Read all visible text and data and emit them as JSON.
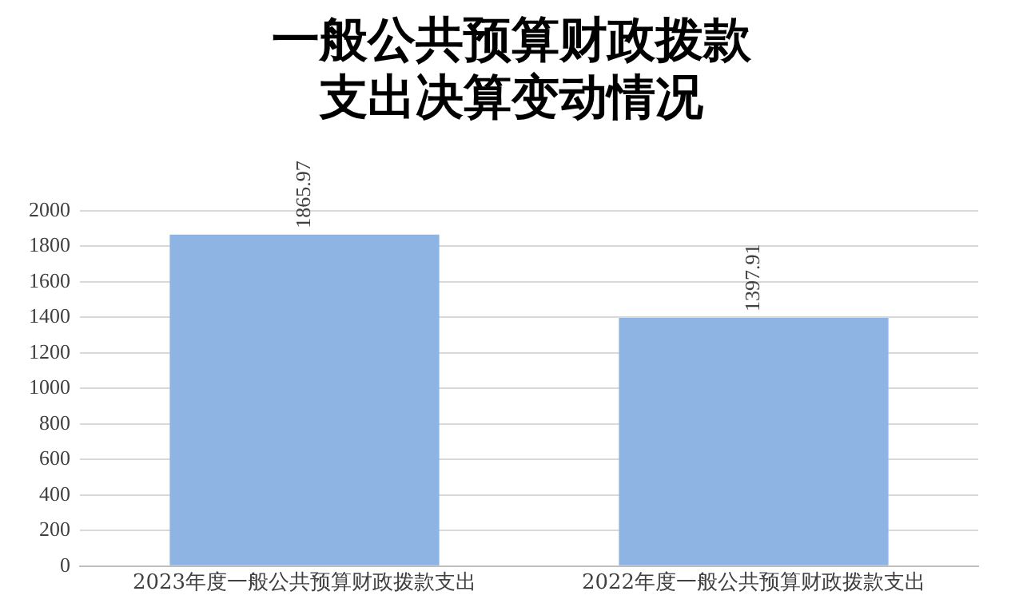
{
  "chart_data": {
    "type": "bar",
    "title": "一般公共预算财政拨款支出决算变动情况",
    "categories": [
      "2023年度一般公共预算财政拨款支出",
      "2022年度一般公共预算财政拨款支出"
    ],
    "values": [
      1865.97,
      1397.91
    ],
    "color": "#8db4e2",
    "ylim": [
      0,
      2000
    ],
    "yticks": [
      0,
      200,
      400,
      600,
      800,
      1000,
      1200,
      1400,
      1600,
      1800,
      2000
    ],
    "grid": "y",
    "data_labels": true
  }
}
